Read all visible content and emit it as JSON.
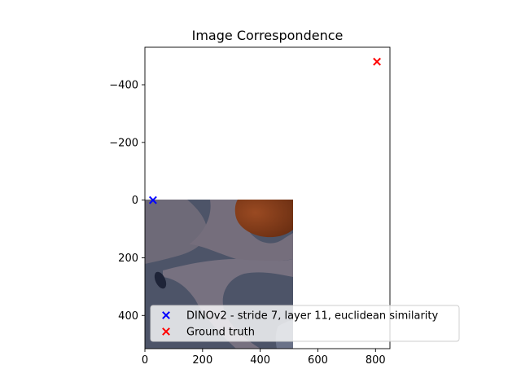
{
  "chart_data": {
    "type": "scatter",
    "title": "Image Correspondence",
    "xlabel": "",
    "ylabel": "",
    "xlim": [
      0,
      850
    ],
    "ylim": [
      515,
      -530
    ],
    "y_inverted": true,
    "grid": false,
    "xticks": [
      0,
      200,
      400,
      600,
      800
    ],
    "yticks": [
      -400,
      -200,
      0,
      200,
      400
    ],
    "xtick_labels": [
      "0",
      "200",
      "400",
      "600",
      "800"
    ],
    "ytick_labels": [
      "−400",
      "−200",
      "0",
      "200",
      "400"
    ],
    "background_image": {
      "description_visible": false,
      "extent_x": [
        0,
        512
      ],
      "extent_y": [
        0,
        512
      ]
    },
    "series": [
      {
        "name": "DINOv2 - stride 7, layer 11, euclidean similarity",
        "marker": "x",
        "color": "#0000ff",
        "points": [
          {
            "x": 28,
            "y": 0
          }
        ]
      },
      {
        "name": "Ground truth",
        "marker": "x",
        "color": "#ff0000",
        "points": [
          {
            "x": 805,
            "y": -480
          }
        ]
      }
    ],
    "legend_position": "lower-right"
  }
}
